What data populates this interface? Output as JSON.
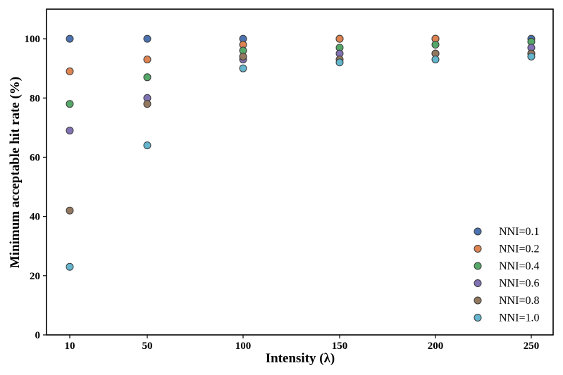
{
  "chart_data": {
    "type": "scatter",
    "title": "",
    "xlabel": "Intensity (λ)",
    "ylabel": "Minimum acceptable hit rate (%)",
    "categories": [
      "10",
      "50",
      "100",
      "150",
      "200",
      "250"
    ],
    "ylim": [
      0,
      110
    ],
    "yticks": [
      0,
      20,
      40,
      60,
      80,
      100
    ],
    "grid": false,
    "legend_position": "bottom-right",
    "series": [
      {
        "name": "NNI=0.1",
        "color": "#4c72b0",
        "values": [
          100,
          100,
          100,
          100,
          100,
          100
        ]
      },
      {
        "name": "NNI=0.2",
        "color": "#dd8452",
        "values": [
          89,
          93,
          98,
          100,
          100,
          95
        ]
      },
      {
        "name": "NNI=0.4",
        "color": "#55a868",
        "values": [
          78,
          87,
          96,
          97,
          98,
          99
        ]
      },
      {
        "name": "NNI=0.6",
        "color": "#8172b3",
        "values": [
          69,
          80,
          93,
          95,
          95,
          97
        ]
      },
      {
        "name": "NNI=0.8",
        "color": "#937860",
        "values": [
          42,
          78,
          94,
          93,
          95,
          95
        ]
      },
      {
        "name": "NNI=1.0",
        "color": "#64b5cd",
        "values": [
          23,
          64,
          90,
          92,
          93,
          94
        ]
      }
    ]
  }
}
